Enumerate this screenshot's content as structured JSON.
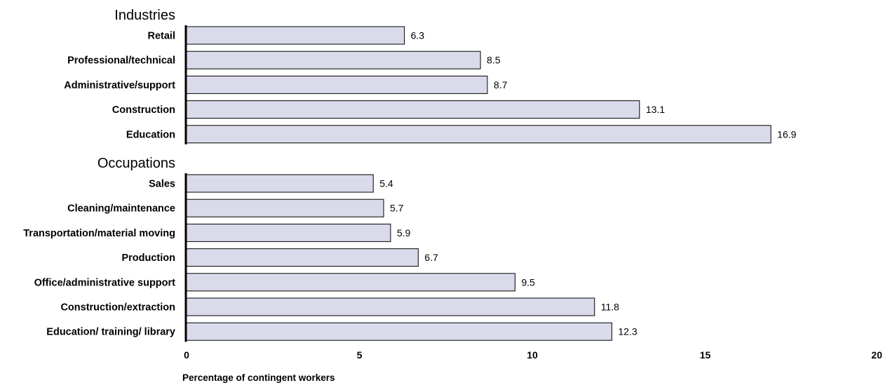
{
  "chart_data": {
    "type": "bar",
    "orientation": "horizontal",
    "xlabel": "Percentage of contingent workers",
    "xlim": [
      0,
      20
    ],
    "xticks": [
      "0",
      "5",
      "10",
      "15",
      "20"
    ],
    "bar_color": "#d9dbeb",
    "bar_stroke": "#000000",
    "groups": [
      {
        "title": "Industries",
        "categories": [
          "Retail",
          "Professional/technical",
          "Administrative/support",
          "Construction",
          "Education"
        ],
        "values": [
          6.3,
          8.5,
          8.7,
          13.1,
          16.9
        ],
        "value_labels": [
          "6.3",
          "8.5",
          "8.7",
          "13.1",
          "16.9"
        ]
      },
      {
        "title": "Occupations",
        "categories": [
          "Sales",
          "Cleaning/maintenance",
          "Transportation/material moving",
          "Production",
          "Office/administrative support",
          "Construction/extraction",
          "Education/ training/ library"
        ],
        "values": [
          5.4,
          5.7,
          5.9,
          6.7,
          9.5,
          11.8,
          12.3
        ],
        "value_labels": [
          "5.4",
          "5.7",
          "5.9",
          "6.7",
          "9.5",
          "11.8",
          "12.3"
        ]
      }
    ]
  }
}
